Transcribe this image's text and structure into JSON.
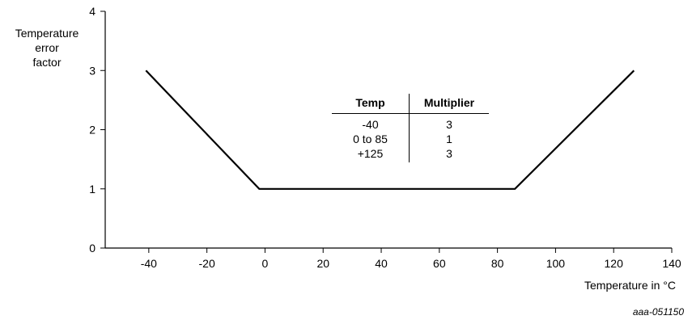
{
  "chart_data": {
    "type": "line",
    "x": [
      -41,
      -2,
      86,
      127
    ],
    "series": [
      {
        "values": [
          3,
          1,
          1,
          3
        ]
      }
    ],
    "ylabel_lines": [
      "Temperature",
      "error",
      "factor"
    ],
    "xlabel": "Temperature in °C",
    "xlim": [
      -55,
      140
    ],
    "ylim": [
      0,
      4
    ],
    "xticks": [
      -40,
      -20,
      0,
      20,
      40,
      60,
      80,
      100,
      120,
      140
    ],
    "yticks": [
      0,
      1,
      2,
      3,
      4
    ],
    "grid": false,
    "line_color": "#000000"
  },
  "table": {
    "headers": [
      "Temp",
      "Multiplier"
    ],
    "rows": [
      [
        "-40",
        "3"
      ],
      [
        "0 to 85",
        "1"
      ],
      [
        "+125",
        "3"
      ]
    ]
  },
  "figure_id": "aaa-051150"
}
